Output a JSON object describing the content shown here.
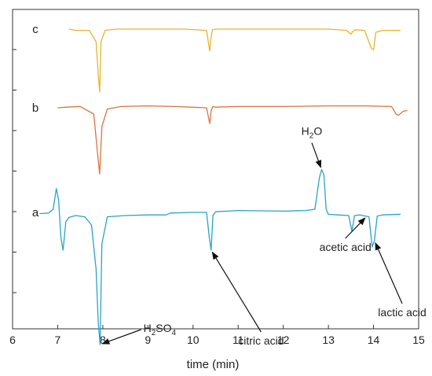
{
  "chart_data": {
    "type": "line",
    "title": "",
    "xlabel": "time (min)",
    "ylabel": "",
    "xlim": [
      6,
      15
    ],
    "x_ticks": [
      "6",
      "7",
      "8",
      "9",
      "10",
      "11",
      "12",
      "13",
      "14",
      "15"
    ],
    "y_ticks_labeled": false,
    "grid": false,
    "series": [
      {
        "name": "c",
        "color": "#E8B42C",
        "x": [
          7.25,
          7.4,
          7.7,
          7.85,
          7.9,
          7.93,
          7.96,
          8.05,
          8.3,
          9.0,
          9.8,
          10.3,
          10.37,
          10.4,
          10.43,
          10.5,
          11.0,
          12.0,
          13.0,
          13.4,
          13.5,
          13.55,
          13.6,
          13.8,
          13.95,
          14.0,
          14.05,
          14.2,
          14.6
        ],
        "y": [
          0.0,
          -0.02,
          -0.02,
          -0.2,
          -0.72,
          -1.0,
          -0.2,
          -0.02,
          0.0,
          0.0,
          0.0,
          -0.02,
          -0.35,
          -0.12,
          -0.01,
          0.0,
          0.0,
          0.0,
          0.0,
          -0.02,
          -0.08,
          -0.03,
          -0.01,
          -0.02,
          -0.3,
          -0.33,
          -0.05,
          -0.02,
          -0.02
        ]
      },
      {
        "name": "b",
        "color": "#D9743E",
        "x": [
          7.0,
          7.2,
          7.5,
          7.8,
          7.88,
          7.93,
          7.98,
          8.1,
          8.4,
          9.0,
          9.6,
          10.3,
          10.37,
          10.4,
          10.44,
          10.5,
          11.0,
          12.0,
          13.0,
          13.8,
          14.4,
          14.5,
          14.55,
          14.65,
          14.75
        ],
        "y": [
          0.0,
          0.01,
          0.02,
          -0.1,
          -0.7,
          -1.05,
          -0.3,
          -0.02,
          0.02,
          0.03,
          0.02,
          0.0,
          -0.25,
          -0.05,
          0.02,
          0.01,
          0.02,
          0.02,
          0.03,
          0.03,
          0.02,
          -0.1,
          -0.12,
          -0.06,
          -0.04
        ]
      },
      {
        "name": "a",
        "color": "#2AA3C9",
        "x": [
          6.6,
          6.8,
          6.9,
          6.97,
          7.02,
          7.07,
          7.12,
          7.18,
          7.25,
          7.4,
          7.6,
          7.75,
          7.85,
          7.9,
          7.94,
          7.98,
          8.1,
          8.5,
          9.0,
          9.4,
          9.5,
          10.0,
          10.3,
          10.36,
          10.4,
          10.44,
          10.5,
          11.0,
          12.0,
          12.5,
          12.7,
          12.8,
          12.85,
          12.9,
          12.95,
          13.0,
          13.2,
          13.45,
          13.52,
          13.58,
          13.7,
          13.9,
          13.97,
          14.02,
          14.08,
          14.2,
          14.6
        ],
        "y": [
          -0.02,
          -0.01,
          0.05,
          0.38,
          0.2,
          -0.4,
          -0.6,
          -0.15,
          -0.08,
          -0.05,
          -0.07,
          -0.2,
          -0.9,
          -1.75,
          -2.1,
          -0.5,
          -0.07,
          -0.05,
          -0.04,
          -0.04,
          -0.01,
          0.0,
          0.0,
          -0.4,
          -0.6,
          -0.05,
          0.01,
          0.03,
          0.02,
          0.03,
          0.05,
          0.55,
          0.68,
          0.6,
          0.05,
          -0.03,
          -0.04,
          -0.05,
          -0.3,
          -0.05,
          -0.04,
          -0.07,
          -0.55,
          -0.45,
          -0.06,
          -0.04,
          -0.03
        ]
      }
    ],
    "annotations": [
      {
        "text_parts": [
          [
            "H",
            "n"
          ],
          [
            "2",
            "sub"
          ],
          [
            "SO",
            "n"
          ],
          [
            "4",
            "sub"
          ]
        ],
        "series": "a",
        "point_x": 7.94,
        "label_x": 8.9,
        "label_dy": 0.2
      },
      {
        "text": "citric acid",
        "series": "a",
        "point_x": 10.4,
        "label_x": 11.0,
        "label_dy": -1.5
      },
      {
        "text_parts": [
          [
            "H",
            "n"
          ],
          [
            "2",
            "sub"
          ],
          [
            "O",
            "n"
          ]
        ],
        "series": "a",
        "point_x": 12.85,
        "label_x": 12.4,
        "label_dy": 0.55
      },
      {
        "text": "acetic acid",
        "series": "a",
        "point_x": 13.85,
        "label_x": 12.8,
        "label_dy": -0.55
      },
      {
        "text": "lactic acid",
        "series": "a",
        "point_x": 14.02,
        "label_x": 14.1,
        "label_dy": -1.2
      }
    ]
  }
}
